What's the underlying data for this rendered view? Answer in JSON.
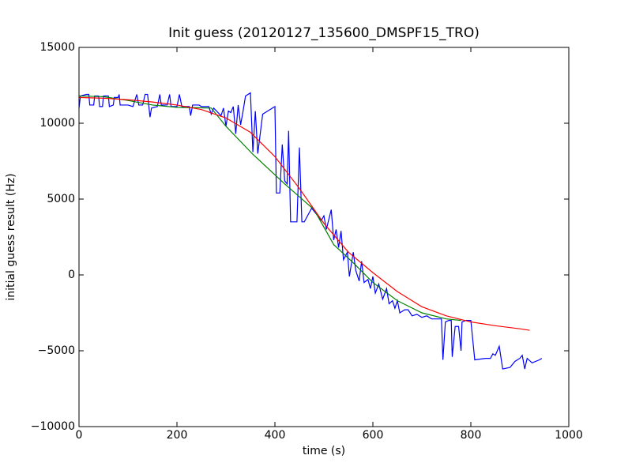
{
  "chart_data": {
    "type": "line",
    "title": "Init guess (20120127_135600_DMSPF15_TRO)",
    "xlabel": "time (s)",
    "ylabel": "initial guess result (Hz)",
    "xlim": [
      0,
      1000
    ],
    "xticks": [
      0,
      200,
      400,
      600,
      800,
      1000
    ],
    "ylim": [
      -10000,
      15000
    ],
    "yticks": [
      {
        "value": -10000,
        "label": "−10000"
      },
      {
        "value": -5000,
        "label": "−5000"
      },
      0,
      5000,
      10000,
      15000
    ],
    "grid": false,
    "series": [
      {
        "color": "#0000ff",
        "x": [
          0,
          3,
          15,
          20,
          22,
          30,
          32,
          40,
          42,
          48,
          50,
          60,
          62,
          70,
          72,
          80,
          82,
          84,
          100,
          110,
          118,
          122,
          130,
          135,
          140,
          145,
          148,
          160,
          165,
          168,
          180,
          185,
          188,
          200,
          205,
          210,
          225,
          228,
          232,
          245,
          250,
          265,
          270,
          275,
          290,
          295,
          300,
          305,
          310,
          315,
          320,
          325,
          330,
          335,
          340,
          350,
          355,
          360,
          365,
          375,
          385,
          395,
          400,
          403,
          410,
          415,
          420,
          425,
          428,
          432,
          445,
          450,
          455,
          460,
          475,
          485,
          495,
          500,
          505,
          515,
          520,
          525,
          530,
          535,
          540,
          548,
          552,
          560,
          565,
          572,
          577,
          582,
          590,
          595,
          600,
          605,
          612,
          620,
          628,
          633,
          640,
          645,
          650,
          655,
          665,
          672,
          680,
          690,
          700,
          710,
          720,
          740,
          743,
          748,
          755,
          760,
          762,
          768,
          775,
          780,
          782,
          790,
          800,
          808,
          830,
          840,
          845,
          850,
          858,
          865,
          880,
          890,
          900,
          905,
          910,
          915,
          925,
          940,
          945
        ],
        "values": [
          11000,
          11800,
          11900,
          11900,
          11200,
          11200,
          11800,
          11800,
          11100,
          11100,
          11800,
          11800,
          11100,
          11200,
          11700,
          11700,
          11900,
          11200,
          11200,
          11100,
          11900,
          11200,
          11200,
          11900,
          11900,
          10400,
          11000,
          11100,
          11900,
          11200,
          11200,
          11900,
          11100,
          11100,
          11900,
          11100,
          11100,
          10500,
          11200,
          11200,
          11100,
          11100,
          10600,
          11000,
          10500,
          11000,
          9800,
          10800,
          10700,
          11100,
          9300,
          11200,
          9900,
          10800,
          11800,
          12000,
          8100,
          10800,
          8000,
          10600,
          10800,
          11000,
          11100,
          5400,
          5400,
          8600,
          6200,
          6000,
          9500,
          3500,
          3500,
          8400,
          3500,
          3500,
          4400,
          4000,
          3600,
          3900,
          3000,
          4300,
          2300,
          3000,
          1800,
          2900,
          1000,
          1500,
          -100,
          1500,
          300,
          -400,
          900,
          -500,
          -300,
          -900,
          -100,
          -1200,
          -600,
          -1600,
          -900,
          -1900,
          -1700,
          -2200,
          -1700,
          -2500,
          -2300,
          -2300,
          -2700,
          -2600,
          -2800,
          -2700,
          -2900,
          -2900,
          -5600,
          -3100,
          -3000,
          -3000,
          -5400,
          -3400,
          -3400,
          -5000,
          -3100,
          -3000,
          -3000,
          -5600,
          -5500,
          -5500,
          -5200,
          -5300,
          -4700,
          -6200,
          -6100,
          -5700,
          -5500,
          -5300,
          -6200,
          -5500,
          -5800,
          -5600,
          -5500
        ]
      },
      {
        "color": "#008000",
        "x": [
          0,
          50,
          100,
          150,
          200,
          270,
          300,
          355,
          420,
          480,
          520,
          560,
          600,
          650,
          700,
          750,
          780
        ],
        "values": [
          11800,
          11750,
          11500,
          11200,
          11050,
          11000,
          9800,
          7950,
          6000,
          4300,
          2000,
          800,
          -500,
          -1700,
          -2500,
          -2900,
          -3000
        ]
      },
      {
        "color": "#ff0000",
        "x": [
          0,
          50,
          100,
          150,
          200,
          250,
          300,
          350,
          400,
          450,
          500,
          550,
          600,
          650,
          700,
          750,
          800,
          850,
          900,
          920
        ],
        "values": [
          11700,
          11650,
          11550,
          11400,
          11200,
          10900,
          10350,
          9400,
          7800,
          5700,
          3400,
          1500,
          150,
          -1100,
          -2100,
          -2700,
          -3100,
          -3350,
          -3550,
          -3650
        ]
      }
    ]
  }
}
